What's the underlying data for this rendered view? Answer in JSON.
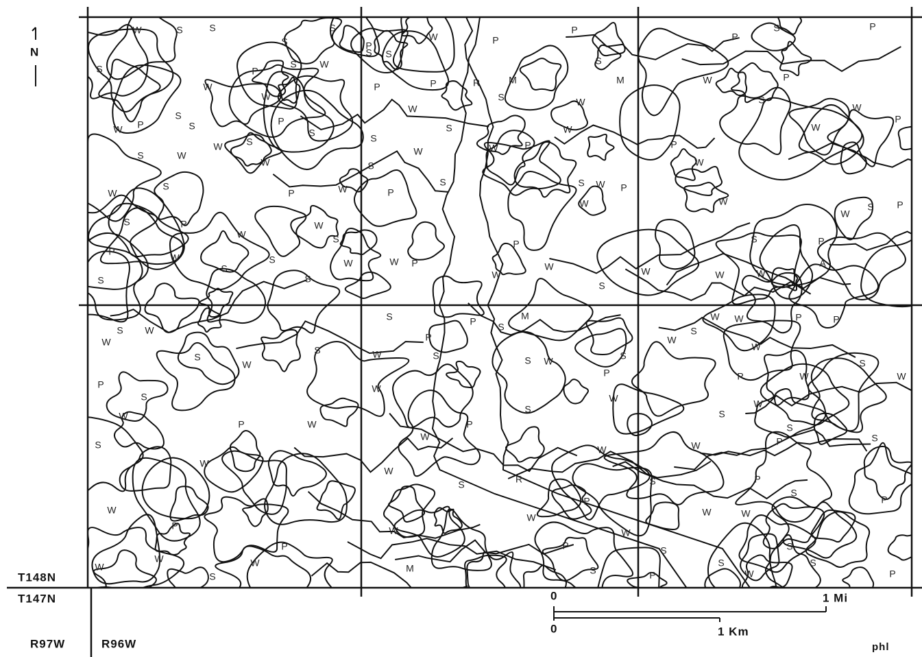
{
  "north_arrow": {
    "label": "N"
  },
  "township_labels": [
    "T148N",
    "T147N"
  ],
  "range_labels": [
    "R97W",
    "R96W"
  ],
  "scale_bar": {
    "miles": {
      "start": "0",
      "end": "1 Mi"
    },
    "kilometers": {
      "start": "0",
      "end": "1 Km"
    }
  },
  "credit": "phl",
  "map_labels": [
    "W",
    "S",
    "S",
    "S",
    "S",
    "P",
    "S",
    "W",
    "S",
    "W",
    "W",
    "P",
    "S",
    "S",
    "P",
    "S",
    "W",
    "S",
    "W",
    "W",
    "S",
    "W",
    "S",
    "P",
    "W",
    "W",
    "S",
    "P",
    "W",
    "W",
    "S",
    "S",
    "S",
    "W",
    "S",
    "W",
    "P",
    "S",
    "S",
    "P",
    "S",
    "W",
    "P",
    "P",
    "W",
    "S",
    "S",
    "W",
    "S",
    "S",
    "P",
    "W",
    "P",
    "R",
    "M",
    "S",
    "P",
    "P",
    "S",
    "M",
    "W",
    "W",
    "P",
    "W",
    "S",
    "W",
    "P",
    "W",
    "W",
    "S",
    "W",
    "P",
    "P",
    "S",
    "P",
    "W",
    "P",
    "S",
    "W",
    "P",
    "W",
    "P",
    "W",
    "W",
    "S",
    "W",
    "P",
    "A",
    "W",
    "W",
    "W",
    "S",
    "P",
    "W",
    "S",
    "W",
    "S",
    "W",
    "S",
    "P",
    "S",
    "W",
    "P",
    "W",
    "W",
    "S",
    "W",
    "P",
    "P",
    "W",
    "W",
    "W",
    "S",
    "S",
    "P",
    "S",
    "W",
    "W",
    "P",
    "W",
    "W",
    "S",
    "W",
    "M",
    "S",
    "P",
    "M",
    "S",
    "W",
    "S",
    "P",
    "W",
    "S",
    "W",
    "R",
    "P",
    "W",
    "P",
    "S",
    "W",
    "S",
    "S",
    "W",
    "W",
    "S",
    "W",
    "W",
    "W",
    "P",
    "P",
    "S",
    "W",
    "P",
    "S",
    "W",
    "S",
    "P",
    "S",
    "W",
    "P",
    "S",
    "W",
    "S",
    "S",
    "S",
    "W",
    "P",
    "P",
    "P",
    "W"
  ]
}
